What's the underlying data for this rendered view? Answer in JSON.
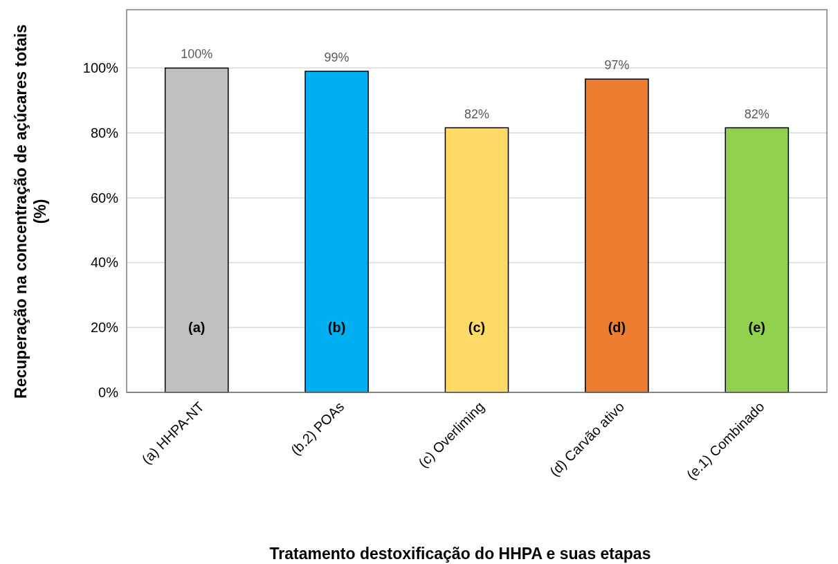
{
  "chart_data": {
    "type": "bar",
    "xlabel": "Tratamento destoxificação do HHPA e suas etapas",
    "ylabel": "Recuperação na concentração de açúcares totais (%)",
    "categories": [
      "(a) HHPA-NT",
      "(b.2) POAs",
      "(c) Overliming",
      "(d) Carvão ativo",
      "(e.1) Combinado"
    ],
    "values": [
      100,
      99,
      81.6,
      96.6,
      81.6
    ],
    "value_labels": [
      "100%",
      "99%",
      "82%",
      "97%",
      "82%"
    ],
    "colors": [
      "#bfbfbf",
      "#00b0f0",
      "#ffd966",
      "#ed7d31",
      "#92d050"
    ],
    "ylim": [
      0,
      118
    ],
    "yticks": [
      {
        "value": 0,
        "label": "0%"
      },
      {
        "value": 20,
        "label": "20%"
      },
      {
        "value": 40,
        "label": "40%"
      },
      {
        "value": 60,
        "label": "60%"
      },
      {
        "value": 80,
        "label": "80%"
      },
      {
        "value": 100,
        "label": "100%"
      }
    ],
    "grid": "y",
    "annotations": [
      "(a)",
      "(b)",
      "(c)",
      "(d)",
      "(e)"
    ]
  }
}
